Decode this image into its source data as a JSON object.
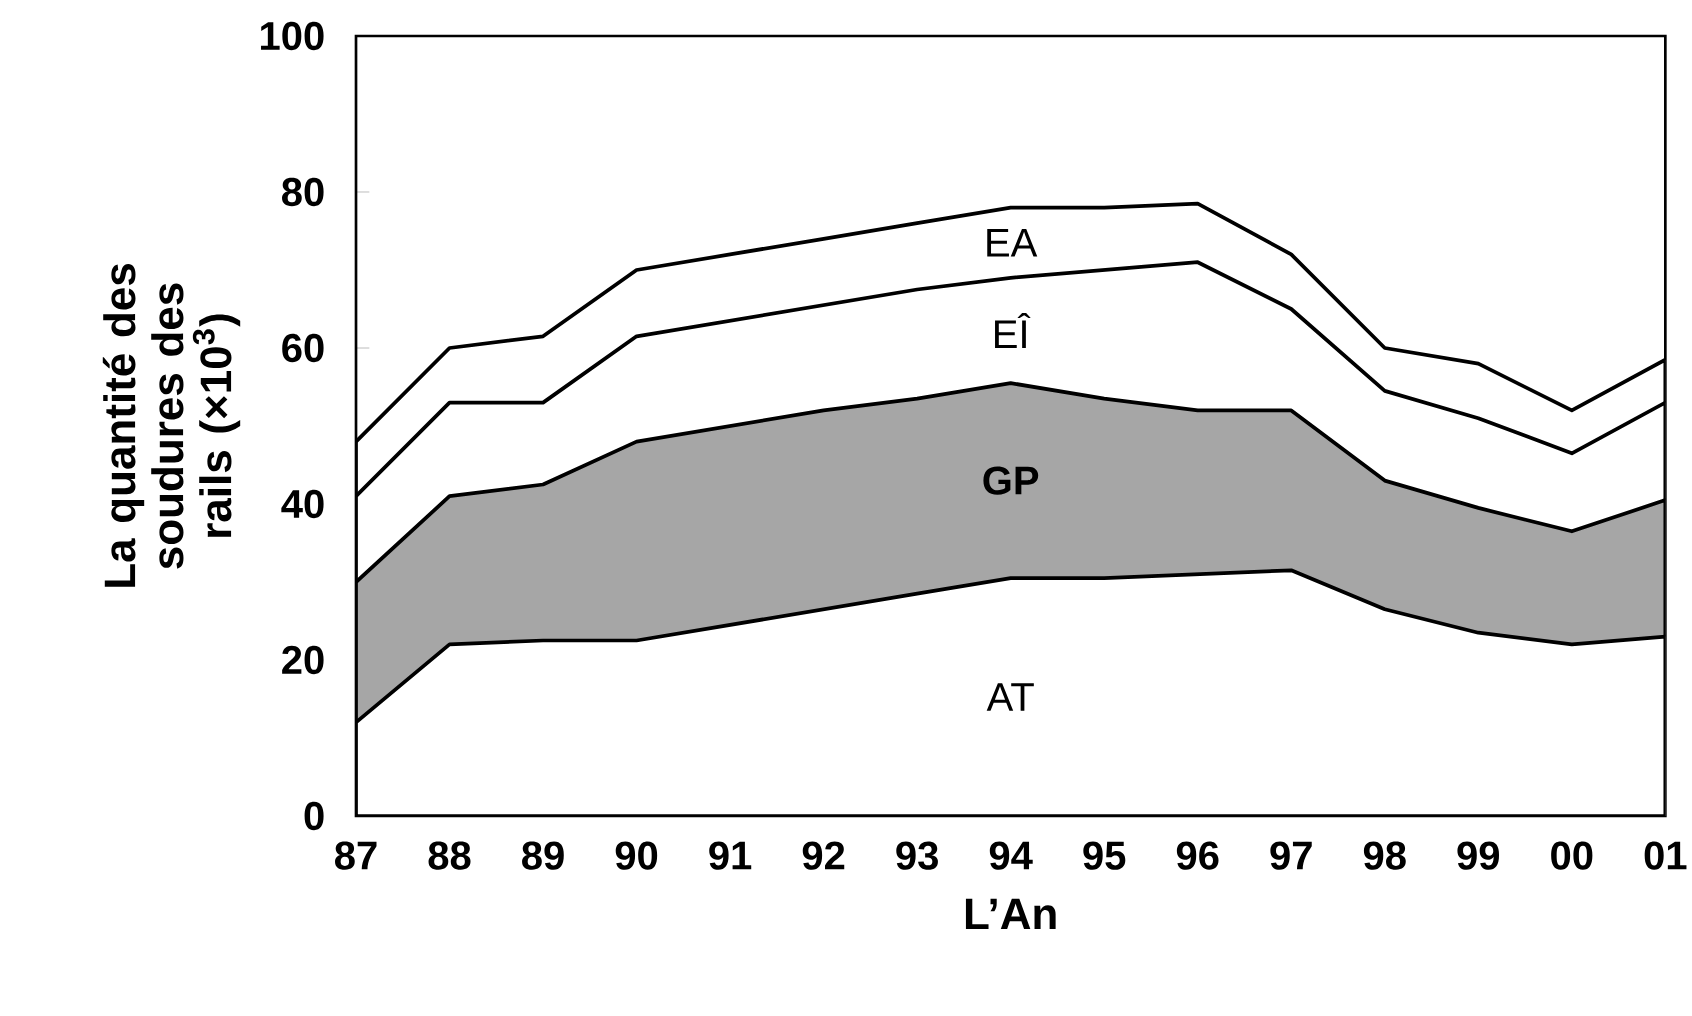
{
  "chart_data": {
    "type": "area",
    "stacked": true,
    "xlabel": "L’An",
    "ylabel": "La quantité des soudures des rails (×10$^{3}$)",
    "categories": [
      "87",
      "88",
      "89",
      "90",
      "91",
      "92",
      "93",
      "94",
      "95",
      "96",
      "97",
      "98",
      "99",
      "00",
      "01"
    ],
    "series": [
      {
        "name": "AT",
        "color": "#ffffff",
        "values": [
          12,
          22,
          22.5,
          22.5,
          24.5,
          26.5,
          28.5,
          30.5,
          30.5,
          31,
          31.5,
          26.5,
          23.5,
          22,
          23
        ]
      },
      {
        "name": "GP",
        "color": "#a6a6a6",
        "values": [
          18,
          19,
          20,
          25.5,
          25.5,
          25.5,
          25,
          25,
          23,
          21,
          20.5,
          16.5,
          16,
          14.5,
          17.5
        ]
      },
      {
        "name": "EÎ",
        "color": "#ffffff",
        "values": [
          11,
          12,
          10.5,
          13.5,
          13.5,
          13.5,
          14,
          13.5,
          16.5,
          19,
          13,
          11.5,
          11.5,
          10,
          12.5
        ]
      },
      {
        "name": "EA",
        "color": "#ffffff",
        "values": [
          7,
          7,
          8.5,
          8.5,
          8.5,
          8.5,
          8.5,
          9,
          8,
          7.5,
          7,
          5.5,
          7,
          5.5,
          5.5
        ]
      }
    ],
    "ylim": [
      0,
      100
    ],
    "yticks": [
      0,
      20,
      40,
      60,
      80,
      100
    ]
  }
}
